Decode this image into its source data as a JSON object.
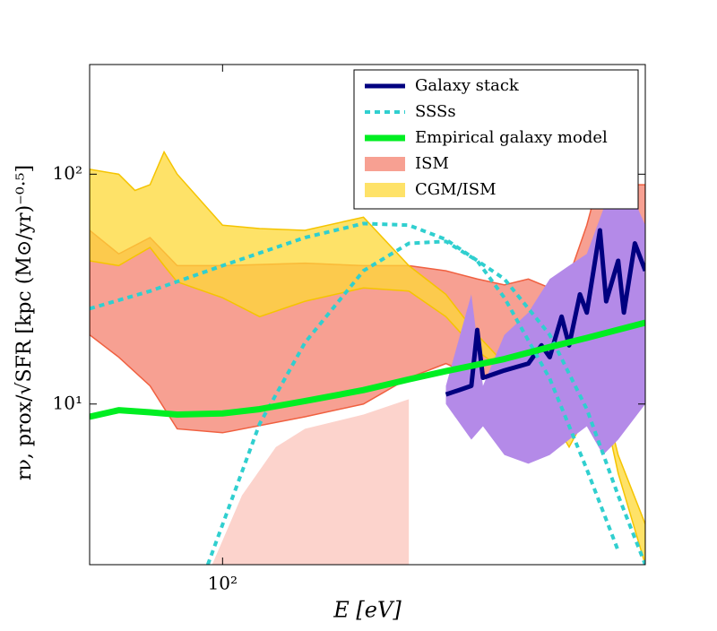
{
  "chart_data": {
    "type": "line",
    "xlog": true,
    "ylog": true,
    "xlabel": "E [eV]",
    "ylabel": "rν, prox/√SFR [kpc (M⊙/yr)⁻⁰·⁵]",
    "xlim": [
      52,
      800
    ],
    "ylim": [
      2,
      300
    ],
    "xticks": [
      {
        "value": 100,
        "label": "10²"
      }
    ],
    "yticks": [
      {
        "value": 10,
        "label": "10¹"
      },
      {
        "value": 100,
        "label": "10²"
      }
    ],
    "legend": "upper right",
    "series": [
      {
        "name": "Galaxy stack",
        "kind": "line",
        "color": "#000080",
        "width": 5,
        "x": [
          300,
          320,
          340,
          350,
          360,
          400,
          450,
          480,
          500,
          530,
          550,
          580,
          600,
          640,
          660,
          700,
          720,
          760,
          800
        ],
        "values": [
          11,
          11.5,
          12,
          21,
          13,
          14,
          15,
          18,
          16,
          24,
          18,
          30,
          25,
          57,
          28,
          42,
          25,
          50,
          38
        ]
      },
      {
        "name": "SSSs",
        "kind": "line",
        "dashed": true,
        "color": "#30cfcf",
        "width": 4,
        "x": [
          52,
          70,
          100,
          150,
          200,
          250,
          300,
          400,
          500,
          600,
          700,
          800
        ],
        "values": [
          26,
          31,
          40,
          53,
          61,
          60,
          52,
          35,
          20,
          9.5,
          4,
          2
        ]
      },
      {
        "kind": "line",
        "dashed": true,
        "color": "#30cfcf",
        "width": 4,
        "x": [
          93,
          120,
          150,
          200,
          250,
          300,
          350,
          400,
          500,
          600,
          700
        ],
        "values": [
          2,
          8.2,
          18.5,
          38,
          50,
          51,
          42,
          29,
          12.9,
          5.2,
          2.3
        ]
      },
      {
        "name": "Empirical galaxy model",
        "kind": "line",
        "color": "#00ee22",
        "width": 7,
        "x": [
          52,
          60,
          70,
          80,
          100,
          120,
          150,
          200,
          250,
          300,
          400,
          500,
          600,
          800
        ],
        "values": [
          8.8,
          9.4,
          9.2,
          9.0,
          9.1,
          9.5,
          10.3,
          11.5,
          12.8,
          13.9,
          15.7,
          17.7,
          19.4,
          22.6
        ]
      },
      {
        "name": "ISM",
        "kind": "band",
        "color": "#f4806e",
        "edge": "#f06040",
        "x": [
          52,
          60,
          70,
          80,
          100,
          150,
          200,
          250,
          300,
          350,
          400,
          450,
          500,
          550,
          600,
          650,
          700,
          800
        ],
        "upper": [
          57,
          45,
          53,
          40,
          40,
          41,
          40,
          40,
          38,
          35,
          33,
          35,
          32,
          36,
          60,
          110,
          90,
          90
        ],
        "lower": [
          20,
          16,
          12,
          7.8,
          7.5,
          8.8,
          10,
          13,
          15,
          13,
          13.5,
          14,
          15,
          17,
          18,
          19,
          18,
          19
        ]
      },
      {
        "name": "CGM/ISM",
        "kind": "band",
        "color": "#fdd835",
        "edge": "#f5c400",
        "x": [
          52,
          60,
          65,
          70,
          75,
          80,
          100,
          120,
          150,
          200,
          250,
          300,
          350,
          400,
          450,
          500,
          550,
          600,
          650,
          700,
          800
        ],
        "upper": [
          105,
          100,
          85,
          90,
          125,
          100,
          60,
          58,
          57,
          65,
          40,
          30,
          20,
          15,
          15,
          18,
          24,
          18,
          11,
          6,
          3
        ],
        "lower": [
          42,
          40,
          44,
          48,
          40,
          34,
          29,
          24,
          28,
          32,
          31,
          24,
          17,
          14,
          11,
          9,
          6.5,
          9,
          10,
          5,
          2
        ]
      },
      {
        "kind": "band",
        "color": "#fcd3cc",
        "x": [
          95,
          110,
          130,
          150,
          200,
          250
        ],
        "upper": [
          2,
          4,
          6.5,
          7.8,
          9,
          10.5
        ],
        "lower": [
          2,
          2,
          2,
          2,
          2,
          2
        ]
      },
      {
        "kind": "band",
        "color": "#b48ae8",
        "x": [
          300,
          340,
          360,
          400,
          450,
          500,
          550,
          600,
          650,
          700,
          800
        ],
        "upper": [
          12,
          30,
          12,
          20,
          25,
          35,
          40,
          45,
          70,
          110,
          60
        ],
        "lower": [
          10,
          7,
          8,
          6,
          5.5,
          6,
          7,
          8,
          6,
          7,
          10
        ]
      }
    ]
  }
}
